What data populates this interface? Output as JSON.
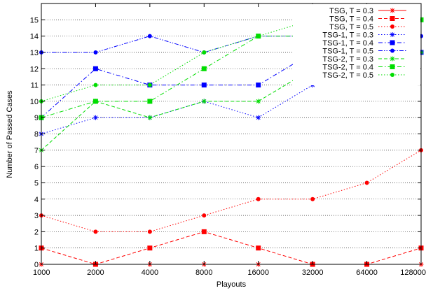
{
  "chart_data": {
    "type": "line",
    "xlabel": "Playouts",
    "ylabel": "Number of Passed Cases",
    "x": [
      1000,
      2000,
      4000,
      8000,
      16000,
      32000,
      64000,
      128000
    ],
    "x_tick_labels": [
      "1000",
      "2000",
      "4000",
      "8000",
      "16000",
      "32000",
      "64000",
      "128000"
    ],
    "x_scale": "log2",
    "ylim": [
      0,
      15
    ],
    "y_tick_labels": [
      "0",
      "1",
      "2",
      "3",
      "4",
      "5",
      "6",
      "7",
      "8",
      "9",
      "10",
      "11",
      "12",
      "13",
      "14",
      "15"
    ],
    "grid": "horizontal dotted",
    "legend_position": "top-right",
    "series": [
      {
        "name": "TSG, T = 0.3",
        "values": [
          0,
          0,
          0,
          0,
          0,
          0,
          0,
          0
        ],
        "color": "#ff0000",
        "marker": "star",
        "dash": "solid"
      },
      {
        "name": "TSG, T = 0.4",
        "values": [
          1,
          0,
          1,
          2,
          1,
          0,
          0,
          1
        ],
        "color": "#ff0000",
        "marker": "square",
        "dash": "dashed"
      },
      {
        "name": "TSG, T = 0.5",
        "values": [
          3,
          2,
          2,
          3,
          4,
          4,
          5,
          7
        ],
        "color": "#ff0000",
        "marker": "circle",
        "dash": "dotted"
      },
      {
        "name": "TSG-1, T = 0.3",
        "values": [
          8,
          9,
          9,
          10,
          9,
          11,
          12,
          13
        ],
        "color": "#0000ff",
        "marker": "star",
        "dash": "dotted"
      },
      {
        "name": "TSG-1, T = 0.4",
        "values": [
          9,
          12,
          11,
          11,
          11,
          13,
          13,
          13
        ],
        "color": "#0000ff",
        "marker": "square",
        "dash": "dashdot"
      },
      {
        "name": "TSG-1, T = 0.5",
        "values": [
          13,
          13,
          14,
          13,
          14,
          14,
          15,
          14
        ],
        "color": "#0000ff",
        "marker": "circle",
        "dash": "dashdotdot"
      },
      {
        "name": "TSG-2, T = 0.3",
        "values": [
          7,
          10,
          9,
          10,
          10,
          12,
          12,
          13
        ],
        "color": "#00dd00",
        "marker": "star",
        "dash": "dashed"
      },
      {
        "name": "TSG-2, T = 0.4",
        "values": [
          9,
          10,
          10,
          12,
          14,
          14,
          14,
          15
        ],
        "color": "#00dd00",
        "marker": "square",
        "dash": "dashdot"
      },
      {
        "name": "TSG-2, T = 0.5",
        "values": [
          10,
          11,
          11,
          13,
          14,
          15,
          15,
          15
        ],
        "color": "#00dd00",
        "marker": "circle",
        "dash": "dotted"
      }
    ]
  }
}
